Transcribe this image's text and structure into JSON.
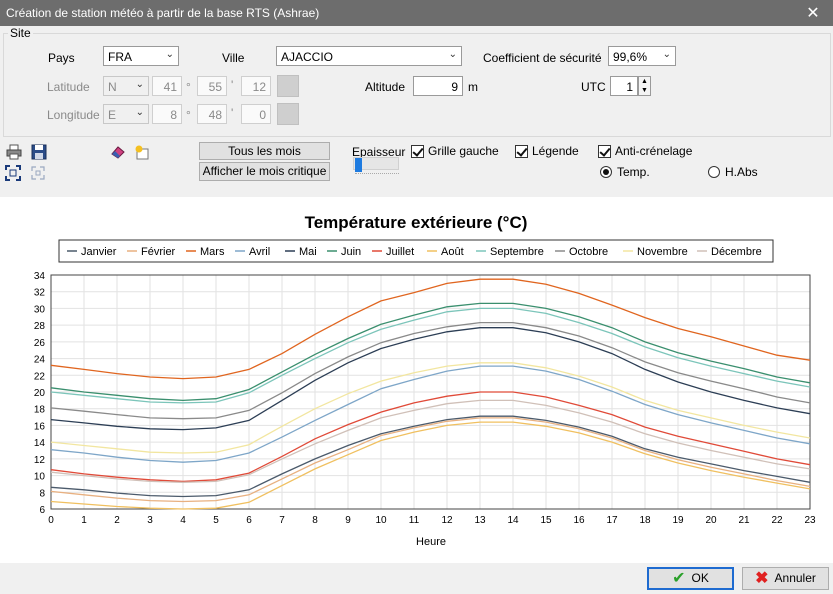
{
  "window": {
    "title": "Création de station météo à partir de la base RTS (Ashrae)",
    "close": "✕"
  },
  "site": {
    "group_label": "Site",
    "pays_label": "Pays",
    "pays_value": "FRA",
    "ville_label": "Ville",
    "ville_value": "AJACCIO",
    "coef_label": "Coefficient de sécurité",
    "coef_value": "99,6%",
    "latitude_label": "Latitude",
    "lat_hemi": "N",
    "lat_deg": "41",
    "lat_min": "55",
    "lat_sec": "12",
    "longitude_label": "Longitude",
    "lon_hemi": "E",
    "lon_deg": "8",
    "lon_min": "48",
    "lon_sec": "0",
    "deg_symbol": "°",
    "min_symbol": "'",
    "altitude_label": "Altitude",
    "altitude_value": "9",
    "altitude_unit": "m",
    "utc_label": "UTC",
    "utc_value": "1"
  },
  "toolbar": {
    "all_months": "Tous les mois",
    "critical_month": "Afficher le mois critique",
    "epaisseur": "Epaisseur",
    "grille_gauche": "Grille gauche",
    "legende": "Légende",
    "anti_crenelage": "Anti-crénelage",
    "temp": "Temp.",
    "habs": "H.Abs"
  },
  "footer": {
    "ok": "OK",
    "cancel": "Annuler"
  },
  "chart_data": {
    "type": "line",
    "title": "Température extérieure (°C)",
    "xlabel": "Heure",
    "ylabel": "",
    "x": [
      0,
      1,
      2,
      3,
      4,
      5,
      6,
      7,
      8,
      9,
      10,
      11,
      12,
      13,
      14,
      15,
      16,
      17,
      18,
      19,
      20,
      21,
      22,
      23
    ],
    "xlim": [
      0,
      23
    ],
    "ylim": [
      6,
      34
    ],
    "yticks": [
      6,
      8,
      10,
      12,
      14,
      16,
      18,
      20,
      22,
      24,
      26,
      28,
      30,
      32,
      34
    ],
    "grid": true,
    "legend_position": "top",
    "series": [
      {
        "name": "Janvier",
        "color": "#4b5a6b",
        "values": [
          8.6,
          8.3,
          7.9,
          7.6,
          7.5,
          7.6,
          8.3,
          10.2,
          12.0,
          13.6,
          15.0,
          15.9,
          16.7,
          17.1,
          17.1,
          16.6,
          15.8,
          14.7,
          13.2,
          12.2,
          11.4,
          10.6,
          9.9,
          9.2
        ]
      },
      {
        "name": "Février",
        "color": "#e8b080",
        "values": [
          8.1,
          7.7,
          7.3,
          7.0,
          6.9,
          7.0,
          7.7,
          9.6,
          11.5,
          13.1,
          14.8,
          15.7,
          16.5,
          16.9,
          16.9,
          16.4,
          15.6,
          14.5,
          13.0,
          11.9,
          11.0,
          10.2,
          9.4,
          8.7
        ]
      },
      {
        "name": "Mars",
        "color": "#e0651f",
        "values": [
          23.2,
          22.7,
          22.2,
          21.8,
          21.6,
          21.8,
          22.7,
          24.6,
          26.9,
          29.0,
          30.9,
          31.9,
          33.0,
          33.5,
          33.5,
          32.9,
          31.8,
          30.4,
          28.9,
          27.6,
          26.6,
          25.5,
          24.4,
          23.8
        ]
      },
      {
        "name": "Avril",
        "color": "#7ea6c8",
        "values": [
          13.1,
          12.7,
          12.2,
          11.8,
          11.6,
          11.8,
          12.7,
          14.6,
          16.6,
          18.5,
          20.4,
          21.5,
          22.5,
          23.1,
          23.1,
          22.5,
          21.5,
          20.1,
          18.5,
          17.3,
          16.3,
          15.4,
          14.5,
          13.8
        ]
      },
      {
        "name": "Mai",
        "color": "#2c3e55",
        "values": [
          16.7,
          16.3,
          15.9,
          15.6,
          15.5,
          15.7,
          16.6,
          19.0,
          21.4,
          23.5,
          25.2,
          26.3,
          27.2,
          27.7,
          27.7,
          27.1,
          26.0,
          24.6,
          22.7,
          21.2,
          20.0,
          19.0,
          18.1,
          17.4
        ]
      },
      {
        "name": "Juin",
        "color": "#3a8f6e",
        "values": [
          20.5,
          20.0,
          19.6,
          19.2,
          19.0,
          19.2,
          20.3,
          22.4,
          24.5,
          26.4,
          28.1,
          29.2,
          30.2,
          30.6,
          30.6,
          30.0,
          29.0,
          27.7,
          26.0,
          24.7,
          23.7,
          22.8,
          21.8,
          21.1
        ]
      },
      {
        "name": "Juillet",
        "color": "#e04a38",
        "values": [
          10.7,
          10.2,
          9.8,
          9.5,
          9.3,
          9.5,
          10.3,
          12.3,
          14.4,
          16.1,
          17.6,
          18.7,
          19.5,
          20.0,
          20.0,
          19.4,
          18.4,
          17.3,
          15.8,
          14.7,
          13.8,
          12.9,
          12.0,
          11.3
        ]
      },
      {
        "name": "Août",
        "color": "#f0c060",
        "values": [
          6.9,
          6.6,
          6.3,
          6.1,
          6.0,
          6.1,
          6.8,
          8.8,
          10.8,
          12.5,
          14.2,
          15.2,
          16.0,
          16.4,
          16.4,
          15.9,
          15.1,
          14.0,
          12.6,
          11.5,
          10.6,
          9.8,
          9.1,
          8.4
        ]
      },
      {
        "name": "Septembre",
        "color": "#7cc5ba",
        "values": [
          20.0,
          19.6,
          19.2,
          18.8,
          18.7,
          18.8,
          19.9,
          22.0,
          24.0,
          25.9,
          27.5,
          28.6,
          29.6,
          30.0,
          30.0,
          29.4,
          28.3,
          27.0,
          25.4,
          24.1,
          23.1,
          22.2,
          21.3,
          20.6
        ]
      },
      {
        "name": "Octobre",
        "color": "#8a8a8a",
        "values": [
          18.1,
          17.7,
          17.3,
          16.9,
          16.8,
          16.9,
          17.8,
          19.9,
          22.2,
          24.2,
          25.9,
          27.0,
          27.8,
          28.3,
          28.3,
          27.7,
          26.7,
          25.3,
          23.6,
          22.3,
          21.3,
          20.4,
          19.4,
          18.7
        ]
      },
      {
        "name": "Novembre",
        "color": "#f2e6a0",
        "values": [
          14.0,
          13.6,
          13.2,
          12.8,
          12.7,
          12.8,
          13.7,
          15.9,
          18.0,
          19.8,
          21.3,
          22.3,
          23.1,
          23.5,
          23.5,
          22.9,
          21.9,
          20.6,
          19.0,
          17.8,
          16.9,
          16.0,
          15.2,
          14.5
        ]
      },
      {
        "name": "Décembre",
        "color": "#d0c0b8",
        "values": [
          10.4,
          10.0,
          9.6,
          9.3,
          9.2,
          9.3,
          10.1,
          12.0,
          13.8,
          15.4,
          16.9,
          17.8,
          18.6,
          19.0,
          19.0,
          18.4,
          17.5,
          16.4,
          15.0,
          13.9,
          13.0,
          12.2,
          11.4,
          10.8
        ]
      }
    ]
  }
}
